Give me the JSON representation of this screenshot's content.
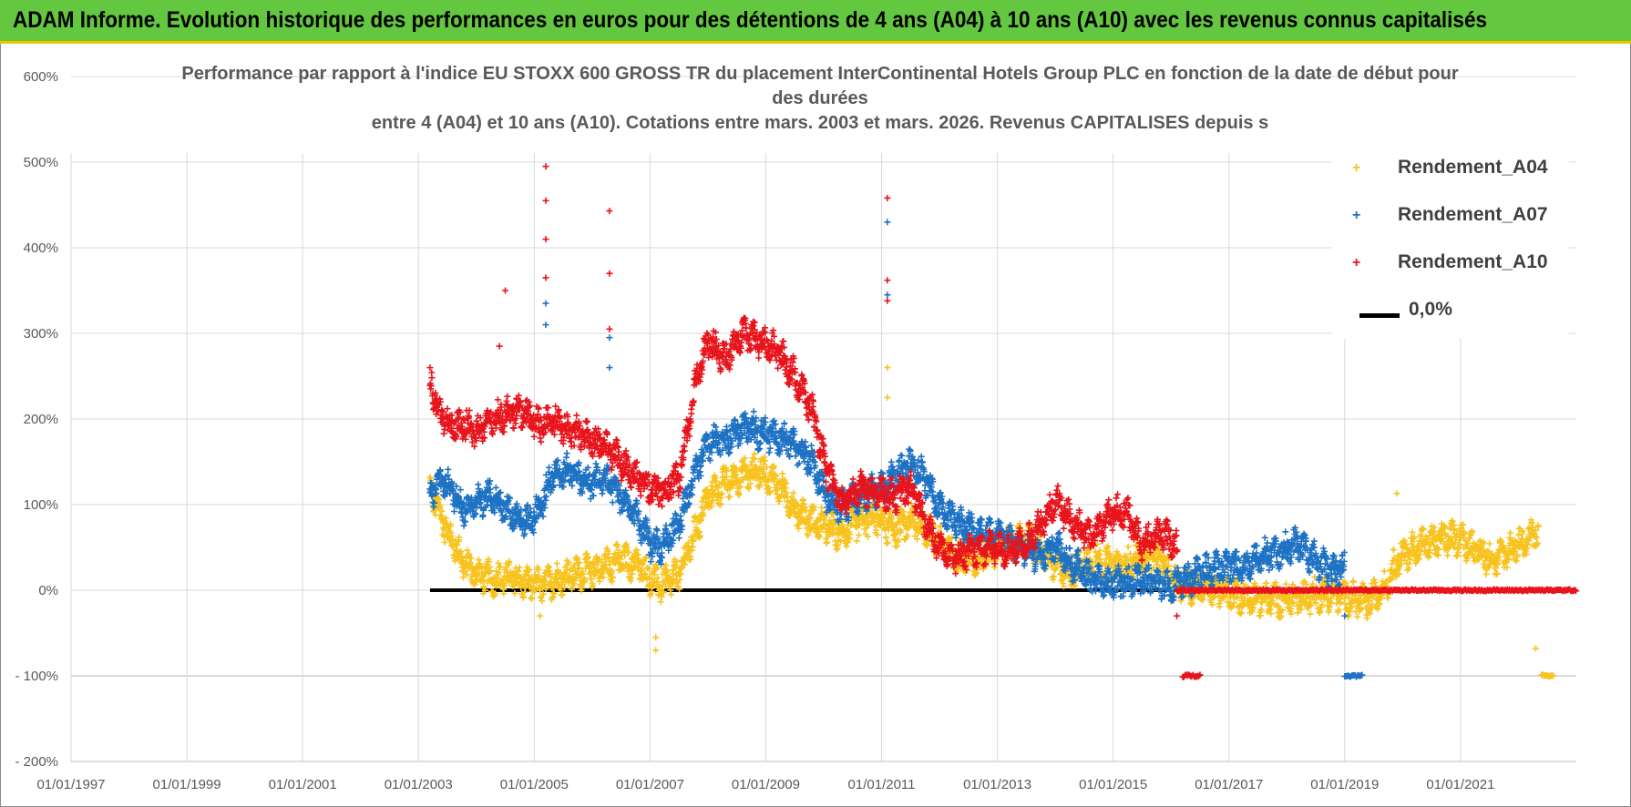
{
  "header": {
    "title": "ADAM Informe. Evolution historique des performances en euros pour des détentions de 4 ans (A04) à 10 ans (A10) avec les revenus connus capitalisés"
  },
  "chart_data": {
    "type": "scatter",
    "title_lines": [
      "Performance par rapport à l'indice EU STOXX 600 GROSS TR  du placement InterContinental Hotels Group PLC en fonction de la date de début pour",
      "des durées",
      "entre 4 (A04) et 10 ans (A10). Cotations entre mars. 2003 et mars. 2026. Revenus CAPITALISES depuis s"
    ],
    "y_ticks": [
      "600%",
      "500%",
      "400%",
      "300%",
      "200%",
      "100%",
      "0%",
      "- 100%",
      "- 200%"
    ],
    "x_ticks": [
      "01/01/1997",
      "01/01/1999",
      "01/01/2001",
      "01/01/2003",
      "01/01/2005",
      "01/01/2007",
      "01/01/2009",
      "01/01/2011",
      "01/01/2013",
      "01/01/2015",
      "01/01/2017",
      "01/01/2019",
      "01/01/2021"
    ],
    "ylim": [
      -200,
      600
    ],
    "xlim": [
      1997.0,
      2023.0
    ],
    "baseline": {
      "name": "0,0%",
      "from": 2003.2,
      "to": 2023.0,
      "value": 0,
      "color": "#000000"
    },
    "series": [
      {
        "name": "Rendement_A04",
        "color": "#f7c31e",
        "points": [
          [
            2003.2,
            120
          ],
          [
            2003.4,
            85
          ],
          [
            2003.6,
            55
          ],
          [
            2003.8,
            30
          ],
          [
            2004.0,
            20
          ],
          [
            2004.3,
            12
          ],
          [
            2004.6,
            15
          ],
          [
            2004.9,
            8
          ],
          [
            2005.1,
            5
          ],
          [
            2005.3,
            10
          ],
          [
            2005.6,
            18
          ],
          [
            2005.9,
            22
          ],
          [
            2006.2,
            28
          ],
          [
            2006.5,
            35
          ],
          [
            2006.8,
            30
          ],
          [
            2007.0,
            15
          ],
          [
            2007.2,
            5
          ],
          [
            2007.5,
            18
          ],
          [
            2007.8,
            70
          ],
          [
            2008.0,
            110
          ],
          [
            2008.3,
            125
          ],
          [
            2008.6,
            135
          ],
          [
            2008.9,
            140
          ],
          [
            2009.2,
            125
          ],
          [
            2009.5,
            95
          ],
          [
            2009.8,
            80
          ],
          [
            2010.0,
            75
          ],
          [
            2010.3,
            65
          ],
          [
            2010.6,
            80
          ],
          [
            2010.9,
            85
          ],
          [
            2011.2,
            70
          ],
          [
            2011.5,
            80
          ],
          [
            2011.8,
            70
          ],
          [
            2012.0,
            55
          ],
          [
            2012.3,
            40
          ],
          [
            2012.6,
            35
          ],
          [
            2012.9,
            45
          ],
          [
            2013.2,
            55
          ],
          [
            2013.5,
            60
          ],
          [
            2013.8,
            40
          ],
          [
            2014.0,
            30
          ],
          [
            2014.3,
            20
          ],
          [
            2014.6,
            35
          ],
          [
            2014.9,
            30
          ],
          [
            2015.2,
            28
          ],
          [
            2015.5,
            40
          ],
          [
            2015.8,
            35
          ],
          [
            2016.0,
            15
          ],
          [
            2016.2,
            5
          ],
          [
            2016.5,
            3
          ],
          [
            2016.8,
            0
          ],
          [
            2017.0,
            -5
          ],
          [
            2017.3,
            -8
          ],
          [
            2017.6,
            -10
          ],
          [
            2017.9,
            -12
          ],
          [
            2018.2,
            -10
          ],
          [
            2018.5,
            -6
          ],
          [
            2018.8,
            -4
          ],
          [
            2019.1,
            -10
          ],
          [
            2019.4,
            -15
          ],
          [
            2019.7,
            5
          ],
          [
            2019.9,
            35
          ],
          [
            2020.1,
            45
          ],
          [
            2020.4,
            55
          ],
          [
            2020.7,
            58
          ],
          [
            2021.0,
            62
          ],
          [
            2021.3,
            45
          ],
          [
            2021.6,
            35
          ],
          [
            2021.9,
            50
          ],
          [
            2022.2,
            60
          ],
          [
            2022.35,
            70
          ]
        ],
        "outliers": [
          [
            2007.1,
            -70
          ],
          [
            2007.1,
            -55
          ],
          [
            2005.1,
            -30
          ],
          [
            2011.1,
            260
          ],
          [
            2011.1,
            225
          ],
          [
            2019.9,
            113
          ],
          [
            2022.3,
            -68
          ]
        ],
        "tail": {
          "from": 2022.4,
          "to": 2022.6,
          "value": -100
        }
      },
      {
        "name": "Rendement_A07",
        "color": "#1e72c4",
        "points": [
          [
            2003.2,
            110
          ],
          [
            2003.4,
            130
          ],
          [
            2003.6,
            115
          ],
          [
            2003.8,
            95
          ],
          [
            2004.0,
            105
          ],
          [
            2004.3,
            110
          ],
          [
            2004.6,
            90
          ],
          [
            2004.9,
            80
          ],
          [
            2005.1,
            95
          ],
          [
            2005.3,
            135
          ],
          [
            2005.6,
            140
          ],
          [
            2005.9,
            125
          ],
          [
            2006.2,
            130
          ],
          [
            2006.5,
            110
          ],
          [
            2006.8,
            80
          ],
          [
            2007.0,
            55
          ],
          [
            2007.2,
            50
          ],
          [
            2007.5,
            80
          ],
          [
            2007.8,
            140
          ],
          [
            2008.0,
            170
          ],
          [
            2008.3,
            175
          ],
          [
            2008.6,
            190
          ],
          [
            2008.9,
            185
          ],
          [
            2009.2,
            180
          ],
          [
            2009.5,
            170
          ],
          [
            2009.8,
            150
          ],
          [
            2010.0,
            115
          ],
          [
            2010.3,
            95
          ],
          [
            2010.6,
            110
          ],
          [
            2010.9,
            115
          ],
          [
            2011.2,
            130
          ],
          [
            2011.5,
            150
          ],
          [
            2011.8,
            125
          ],
          [
            2012.0,
            95
          ],
          [
            2012.3,
            80
          ],
          [
            2012.6,
            70
          ],
          [
            2012.9,
            65
          ],
          [
            2013.2,
            60
          ],
          [
            2013.5,
            45
          ],
          [
            2013.8,
            40
          ],
          [
            2014.0,
            55
          ],
          [
            2014.3,
            30
          ],
          [
            2014.6,
            15
          ],
          [
            2014.9,
            5
          ],
          [
            2015.2,
            10
          ],
          [
            2015.5,
            12
          ],
          [
            2015.8,
            8
          ],
          [
            2016.0,
            5
          ],
          [
            2016.2,
            10
          ],
          [
            2016.5,
            20
          ],
          [
            2016.8,
            25
          ],
          [
            2017.0,
            30
          ],
          [
            2017.3,
            28
          ],
          [
            2017.6,
            40
          ],
          [
            2017.9,
            45
          ],
          [
            2018.2,
            55
          ],
          [
            2018.5,
            35
          ],
          [
            2018.8,
            20
          ],
          [
            2019.0,
            30
          ]
        ],
        "outliers": [
          [
            2005.2,
            335
          ],
          [
            2005.2,
            310
          ],
          [
            2006.3,
            295
          ],
          [
            2006.3,
            260
          ],
          [
            2011.1,
            430
          ],
          [
            2011.1,
            345
          ],
          [
            2019.0,
            -30
          ]
        ],
        "tail": {
          "from": 2019.0,
          "to": 2019.3,
          "value": -100
        }
      },
      {
        "name": "Rendement_A10",
        "color": "#e8141c",
        "points": [
          [
            2003.2,
            245
          ],
          [
            2003.4,
            200
          ],
          [
            2003.6,
            190
          ],
          [
            2003.8,
            195
          ],
          [
            2004.0,
            185
          ],
          [
            2004.3,
            200
          ],
          [
            2004.6,
            210
          ],
          [
            2004.9,
            205
          ],
          [
            2005.1,
            190
          ],
          [
            2005.3,
            200
          ],
          [
            2005.6,
            185
          ],
          [
            2005.9,
            180
          ],
          [
            2006.2,
            170
          ],
          [
            2006.5,
            150
          ],
          [
            2006.8,
            130
          ],
          [
            2007.0,
            120
          ],
          [
            2007.2,
            115
          ],
          [
            2007.5,
            130
          ],
          [
            2007.8,
            250
          ],
          [
            2008.0,
            290
          ],
          [
            2008.3,
            270
          ],
          [
            2008.6,
            300
          ],
          [
            2008.9,
            290
          ],
          [
            2009.2,
            280
          ],
          [
            2009.5,
            250
          ],
          [
            2009.8,
            210
          ],
          [
            2010.0,
            150
          ],
          [
            2010.3,
            100
          ],
          [
            2010.6,
            120
          ],
          [
            2010.9,
            115
          ],
          [
            2011.2,
            110
          ],
          [
            2011.5,
            120
          ],
          [
            2011.8,
            75
          ],
          [
            2012.0,
            50
          ],
          [
            2012.3,
            40
          ],
          [
            2012.6,
            45
          ],
          [
            2012.9,
            50
          ],
          [
            2013.2,
            45
          ],
          [
            2013.5,
            55
          ],
          [
            2013.8,
            80
          ],
          [
            2014.0,
            105
          ],
          [
            2014.3,
            80
          ],
          [
            2014.6,
            60
          ],
          [
            2014.9,
            85
          ],
          [
            2015.2,
            95
          ],
          [
            2015.5,
            55
          ],
          [
            2015.8,
            65
          ],
          [
            2016.0,
            60
          ],
          [
            2016.1,
            50
          ]
        ],
        "outliers": [
          [
            2004.5,
            350
          ],
          [
            2004.4,
            285
          ],
          [
            2005.2,
            495
          ],
          [
            2005.2,
            455
          ],
          [
            2005.2,
            410
          ],
          [
            2005.2,
            365
          ],
          [
            2006.3,
            443
          ],
          [
            2006.3,
            370
          ],
          [
            2006.3,
            305
          ],
          [
            2011.1,
            458
          ],
          [
            2011.1,
            362
          ],
          [
            2011.1,
            338
          ],
          [
            2016.1,
            -30
          ]
        ],
        "tail": {
          "from": 2016.2,
          "to": 2016.5,
          "value": -100
        },
        "zero_tail": {
          "from": 2016.1,
          "to": 2023.0,
          "value": 0
        }
      }
    ],
    "legend": [
      "Rendement_A04",
      "Rendement_A07",
      "Rendement_A10",
      "0,0%"
    ]
  }
}
